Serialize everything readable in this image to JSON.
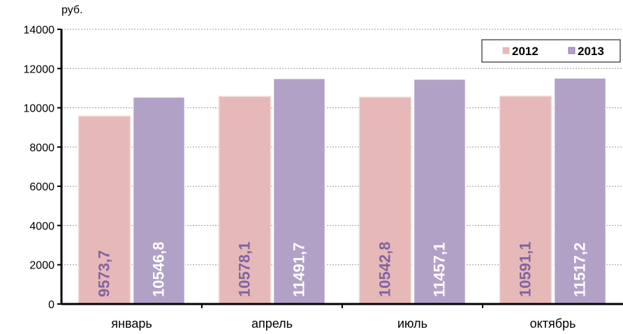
{
  "chart_data": {
    "type": "bar",
    "ylabel": "руб.",
    "categories": [
      "январь",
      "апрель",
      "июль",
      "октябрь"
    ],
    "series": [
      {
        "name": "2012",
        "values": [
          9573.7,
          10578.1,
          10542.8,
          10591.1
        ],
        "labels": [
          "9573,7",
          "10578,1",
          "10542,8",
          "10591,1"
        ],
        "color": "#e6b9b8",
        "label_color": "#8064a2"
      },
      {
        "name": "2013",
        "values": [
          10546.8,
          11491.7,
          11457.1,
          11517.2
        ],
        "labels": [
          "10546,8",
          "11491,7",
          "11457,1",
          "11517,2"
        ],
        "color": "#b2a1c7",
        "label_color": "#ffffff"
      }
    ],
    "ylim": [
      0,
      14000
    ],
    "yticks": [
      0,
      2000,
      4000,
      6000,
      8000,
      10000,
      12000,
      14000
    ],
    "grid": true,
    "legend_position": "top-right",
    "data_label_orientation": "vertical"
  }
}
